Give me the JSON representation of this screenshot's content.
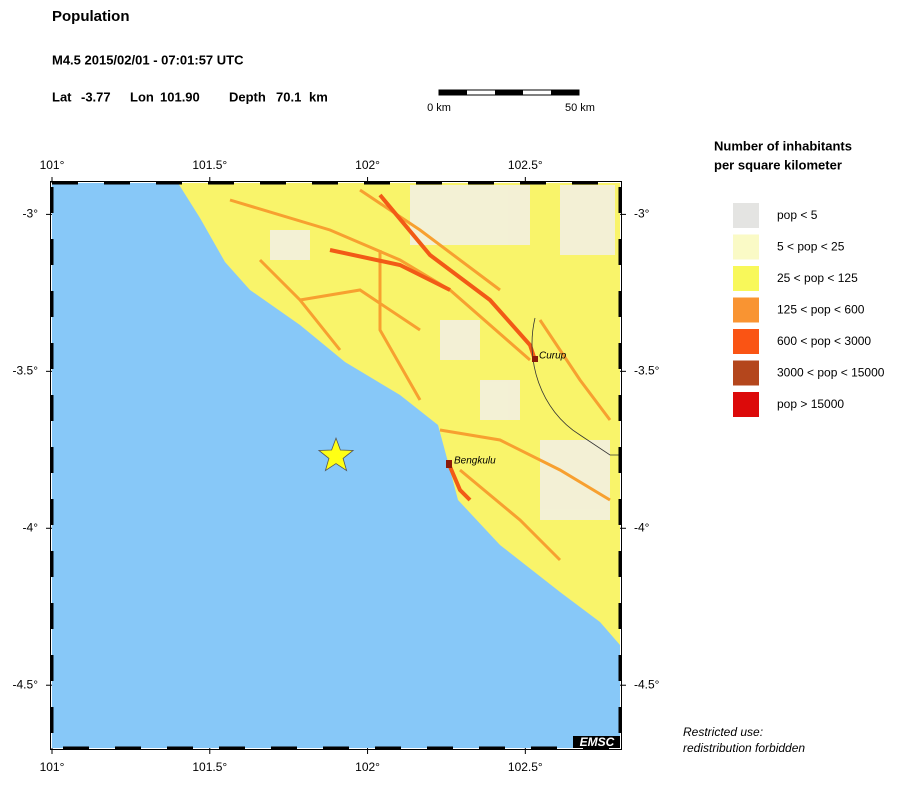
{
  "header": {
    "title": "Population",
    "event": "M4.5  2015/02/01 - 07:01:57 UTC",
    "lat_label": "Lat",
    "lat": -3.77,
    "lon_label": "Lon",
    "lon": {
      "value": 101.9,
      "label": "101.90"
    },
    "depth_label": "Depth",
    "depth": 70.1,
    "depth_unit": "km"
  },
  "scale_bar": {
    "start": "0 km",
    "end": "50 km"
  },
  "map": {
    "lonlim": [
      101,
      102.8
    ],
    "latlim": [
      -2.9,
      -4.7
    ],
    "lonticks": [
      {
        "value": 101,
        "label": "101°"
      },
      {
        "value": 101.5,
        "label": "101.5°"
      },
      {
        "value": 102,
        "label": "102°"
      },
      {
        "value": 102.5,
        "label": "102.5°"
      }
    ],
    "latticks": [
      {
        "value": -3,
        "label": "-3°"
      },
      {
        "value": -3.5,
        "label": "-3.5°"
      },
      {
        "value": -4,
        "label": "-4°"
      },
      {
        "value": -4.5,
        "label": "-4.5°"
      }
    ],
    "cities": [
      "Curup",
      "Bengkulu"
    ],
    "logo": "EMSC"
  },
  "legend": {
    "title": [
      "Number of inhabitants",
      "per square kilometer"
    ],
    "items": [
      {
        "label": "pop < 5",
        "color": "#e4e4e2"
      },
      {
        "label": "5 < pop < 25",
        "color": "#fafac6"
      },
      {
        "label": "25 < pop < 125",
        "color": "#f8f85a"
      },
      {
        "label": "125 < pop < 600",
        "color": "#f99432"
      },
      {
        "label": "600 < pop < 3000",
        "color": "#fa5414"
      },
      {
        "label": "3000 < pop < 15000",
        "color": "#b4461c"
      },
      {
        "label": "pop > 15000",
        "color": "#dc0a0a"
      }
    ]
  },
  "notes": [
    "Restricted use:",
    "redistribution forbidden"
  ]
}
